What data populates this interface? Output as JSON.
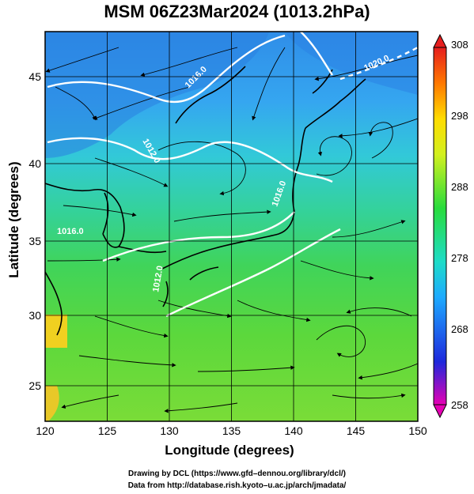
{
  "title": "MSM 06Z23Mar2024 (1013.2hPa)",
  "axes": {
    "xlabel": "Longitude (degrees)",
    "ylabel": "Latitude  (degrees)",
    "xticks": [
      "120",
      "125",
      "130",
      "135",
      "140",
      "145",
      "150"
    ],
    "yticks": [
      "25",
      "30",
      "35",
      "40",
      "45"
    ],
    "xlim": [
      120,
      150
    ],
    "ylim": [
      22.4,
      47.6
    ]
  },
  "colorbar": {
    "ticks": [
      "308",
      "298",
      "288",
      "278",
      "268",
      "258"
    ],
    "range": [
      258,
      308
    ],
    "colors": [
      "#e600b4",
      "#1e28dc",
      "#1eaaff",
      "#1edcc8",
      "#28dc3c",
      "#d2f01e",
      "#ffdc00",
      "#ff7800",
      "#e61e1e"
    ]
  },
  "contour_labels": [
    "1020.0",
    "1016.0",
    "1012.0",
    "1016.0",
    "1012.0",
    "1016.0"
  ],
  "credits": {
    "line1": "Drawing by DCL (https://www.gfd–dennou.org/library/dcl/)",
    "line2": "Data from http://database.rish.kyoto–u.ac.jp/arch/jmadata/"
  }
}
